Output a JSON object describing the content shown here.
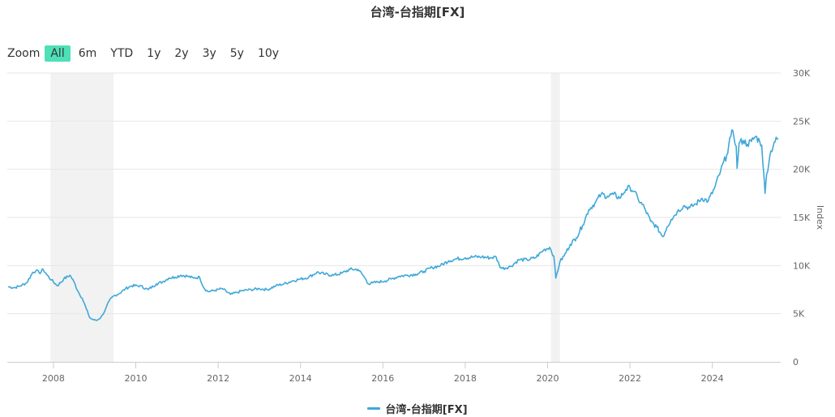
{
  "chart_title": "台湾-台指期[FX]",
  "zoom": {
    "label": "Zoom",
    "buttons": [
      "All",
      "6m",
      "YTD",
      "1y",
      "2y",
      "3y",
      "5y",
      "10y"
    ],
    "active": "All"
  },
  "colors": {
    "series": "#3fa8d8",
    "accent": "#4ee0b8",
    "band": "#f2f2f2",
    "grid": "#e6e6e6"
  },
  "chart_data": {
    "type": "line",
    "title": "台湾-台指期[FX]",
    "xlabel": "",
    "ylabel": "Index",
    "xlim": [
      2006.88,
      2025.66
    ],
    "ylim": [
      0,
      30000
    ],
    "x_ticks": [
      "2008",
      "2010",
      "2012",
      "2014",
      "2016",
      "2018",
      "2020",
      "2022",
      "2024"
    ],
    "y_ticks": [
      "0",
      "5K",
      "10K",
      "15K",
      "20K",
      "25K",
      "30K"
    ],
    "grid": true,
    "legend_position": "bottom-center",
    "shaded_periods": [
      [
        2007.93,
        2009.46
      ],
      [
        2020.08,
        2020.3
      ]
    ],
    "series": [
      {
        "name": "台湾-台指期[FX]",
        "x": [
          2006.9,
          2007.05,
          2007.2,
          2007.35,
          2007.5,
          2007.58,
          2007.66,
          2007.75,
          2007.85,
          2007.95,
          2008.1,
          2008.25,
          2008.4,
          2008.5,
          2008.6,
          2008.7,
          2008.8,
          2008.88,
          2008.95,
          2009.05,
          2009.15,
          2009.25,
          2009.35,
          2009.45,
          2009.6,
          2009.75,
          2009.9,
          2010.1,
          2010.3,
          2010.5,
          2010.65,
          2010.8,
          2010.95,
          2011.1,
          2011.25,
          2011.4,
          2011.55,
          2011.65,
          2011.75,
          2011.9,
          2012.1,
          2012.3,
          2012.45,
          2012.6,
          2012.8,
          2013.0,
          2013.2,
          2013.4,
          2013.6,
          2013.8,
          2014.0,
          2014.2,
          2014.4,
          2014.6,
          2014.8,
          2015.0,
          2015.2,
          2015.4,
          2015.55,
          2015.65,
          2015.75,
          2015.9,
          2016.05,
          2016.2,
          2016.4,
          2016.6,
          2016.8,
          2017.0,
          2017.2,
          2017.4,
          2017.6,
          2017.8,
          2018.0,
          2018.2,
          2018.4,
          2018.6,
          2018.75,
          2018.83,
          2018.9,
          2019.1,
          2019.3,
          2019.5,
          2019.7,
          2019.9,
          2020.05,
          2020.15,
          2020.2,
          2020.3,
          2020.4,
          2020.55,
          2020.7,
          2020.85,
          2021.0,
          2021.15,
          2021.3,
          2021.45,
          2021.6,
          2021.75,
          2021.9,
          2022.0,
          2022.1,
          2022.2,
          2022.35,
          2022.5,
          2022.65,
          2022.8,
          2022.9,
          2023.0,
          2023.15,
          2023.3,
          2023.45,
          2023.6,
          2023.75,
          2023.9,
          2024.05,
          2024.2,
          2024.35,
          2024.45,
          2024.5,
          2024.58,
          2024.6,
          2024.65,
          2024.75,
          2024.85,
          2024.95,
          2025.05,
          2025.15,
          2025.2,
          2025.25,
          2025.28,
          2025.32,
          2025.4,
          2025.5,
          2025.6
        ],
        "values": [
          7800,
          7700,
          7900,
          8200,
          9300,
          9500,
          9200,
          9600,
          9000,
          8500,
          7900,
          8600,
          9000,
          8300,
          7300,
          6600,
          5500,
          4600,
          4400,
          4300,
          4600,
          5300,
          6300,
          6800,
          7100,
          7600,
          7900,
          7900,
          7500,
          8100,
          8300,
          8700,
          8800,
          9000,
          8900,
          8700,
          8800,
          7700,
          7300,
          7400,
          7600,
          7000,
          7200,
          7400,
          7500,
          7600,
          7500,
          7900,
          8100,
          8400,
          8600,
          8800,
          9300,
          9100,
          9000,
          9200,
          9600,
          9600,
          8800,
          8100,
          8200,
          8300,
          8400,
          8600,
          8900,
          9000,
          9100,
          9400,
          9800,
          10000,
          10500,
          10700,
          10800,
          10900,
          10900,
          10800,
          10900,
          10000,
          9700,
          9900,
          10600,
          10600,
          10800,
          11600,
          11900,
          11000,
          8700,
          10400,
          11000,
          12200,
          12900,
          14200,
          15800,
          16500,
          17400,
          17200,
          17400,
          17000,
          17900,
          18100,
          17700,
          16900,
          16000,
          14600,
          14000,
          13000,
          14000,
          14800,
          15600,
          16200,
          16000,
          16400,
          17000,
          16700,
          18000,
          19800,
          21500,
          23400,
          24000,
          22400,
          20100,
          22700,
          23000,
          22600,
          22900,
          23400,
          22900,
          22500,
          19500,
          17500,
          19500,
          21500,
          22800,
          23200
        ]
      }
    ]
  }
}
